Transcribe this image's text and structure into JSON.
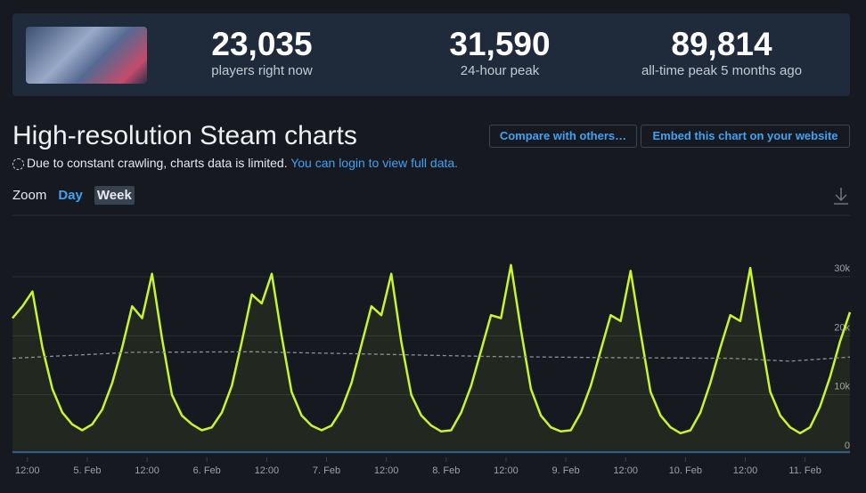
{
  "header": {
    "stats": [
      {
        "value": "23,035",
        "label": "players right now"
      },
      {
        "value": "31,590",
        "label": "24-hour peak"
      },
      {
        "value": "89,814",
        "label": "all-time peak 5 months ago"
      }
    ]
  },
  "title": "High-resolution Steam charts",
  "buttons": [
    "Compare with others…",
    "Embed this chart on your website"
  ],
  "notice": {
    "text": "Due to constant crawling, charts data is limited.",
    "link": "You can login to view full data."
  },
  "zoom": {
    "label": "Zoom",
    "options": [
      "Day",
      "Week"
    ],
    "active": 1
  },
  "chart_data": {
    "type": "line",
    "xlim": [
      9,
      177
    ],
    "ylim": [
      0,
      38000
    ],
    "grid": true,
    "xticks": [
      {
        "value": 12,
        "label": "12:00"
      },
      {
        "value": 24,
        "label": "5. Feb"
      },
      {
        "value": 36,
        "label": "12:00"
      },
      {
        "value": 48,
        "label": "6. Feb"
      },
      {
        "value": 60,
        "label": "12:00"
      },
      {
        "value": 72,
        "label": "7. Feb"
      },
      {
        "value": 84,
        "label": "12:00"
      },
      {
        "value": 96,
        "label": "8. Feb"
      },
      {
        "value": 108,
        "label": "12:00"
      },
      {
        "value": 120,
        "label": "9. Feb"
      },
      {
        "value": 132,
        "label": "12:00"
      },
      {
        "value": 144,
        "label": "10. Feb"
      },
      {
        "value": 156,
        "label": "12:00"
      },
      {
        "value": 168,
        "label": "11. Feb"
      }
    ],
    "yticks": [
      0,
      {
        "value": 10000,
        "label": "10k"
      },
      {
        "value": 20000,
        "label": "20k"
      },
      {
        "value": 30000,
        "label": "30k"
      }
    ],
    "series": [
      {
        "color": "#c8f52c",
        "fill": true,
        "x": [
          9,
          11,
          13,
          15,
          17,
          19,
          21,
          23,
          25,
          27,
          29,
          31,
          33,
          35,
          37,
          39,
          41,
          43,
          45,
          47,
          49,
          51,
          53,
          55,
          57,
          59,
          61,
          63,
          65,
          67,
          69,
          71,
          73,
          75,
          77,
          79,
          81,
          83,
          85,
          87,
          89,
          91,
          93,
          95,
          97,
          99,
          101,
          103,
          105,
          107,
          109,
          111,
          113,
          115,
          117,
          119,
          121,
          123,
          125,
          127,
          129,
          131,
          133,
          135,
          137,
          139,
          141,
          143,
          145,
          147,
          149,
          151,
          153,
          155,
          157,
          159,
          161,
          163,
          165,
          167,
          169,
          171,
          173,
          175,
          177
        ],
        "values": [
          23000,
          25000,
          27500,
          18000,
          11000,
          7000,
          5000,
          4000,
          5000,
          7500,
          12000,
          18000,
          25000,
          23000,
          30500,
          19500,
          10000,
          6500,
          5000,
          4000,
          4500,
          7000,
          11500,
          19000,
          27000,
          25500,
          30500,
          20000,
          10500,
          6500,
          4800,
          4000,
          4800,
          7500,
          12000,
          18500,
          25000,
          23500,
          30500,
          19000,
          10000,
          6500,
          4800,
          3800,
          4000,
          7000,
          11500,
          17500,
          23500,
          23000,
          32000,
          21000,
          11000,
          6500,
          4500,
          3800,
          4000,
          7000,
          11500,
          17500,
          23500,
          22500,
          31000,
          20500,
          10500,
          6500,
          4500,
          3500,
          4000,
          7000,
          12000,
          18000,
          23500,
          22500,
          31500,
          20500,
          10500,
          6500,
          4500,
          3500,
          4500,
          8000,
          13000,
          19000,
          24000
        ]
      },
      {
        "color": "#8a8f98",
        "style": "dashed",
        "x": [
          9,
          33,
          57,
          81,
          105,
          129,
          153,
          165,
          177
        ],
        "values": [
          16200,
          17200,
          17300,
          16900,
          16500,
          16300,
          16200,
          15700,
          16400
        ]
      },
      {
        "color": "#2f7fd4",
        "x": [
          9,
          177
        ],
        "values": [
          300,
          300
        ]
      }
    ]
  }
}
